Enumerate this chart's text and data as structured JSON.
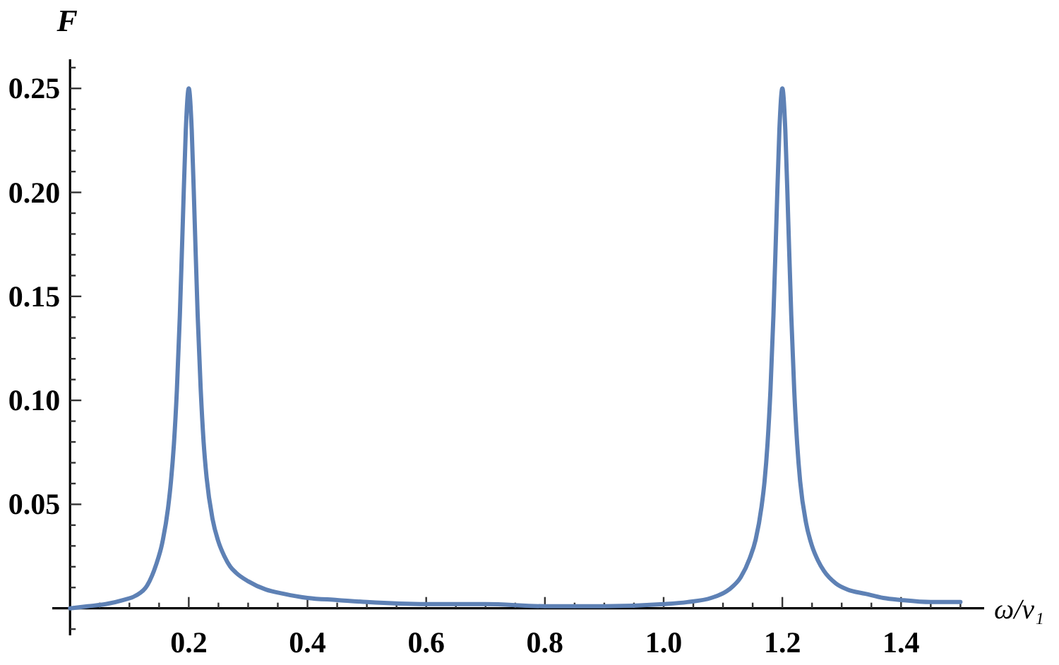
{
  "chart_data": {
    "type": "line",
    "xlabel": "ω/ν₁",
    "ylabel": "F",
    "color": "#5e81b5",
    "x": [
      0,
      0.03,
      0.06,
      0.09,
      0.11,
      0.13,
      0.145,
      0.155,
      0.165,
      0.17,
      0.175,
      0.18,
      0.185,
      0.19,
      0.195,
      0.2,
      0.205,
      0.21,
      0.215,
      0.22,
      0.225,
      0.23,
      0.24,
      0.25,
      0.26,
      0.27,
      0.28,
      0.3,
      0.33,
      0.36,
      0.4,
      0.45,
      0.5,
      0.6,
      0.7,
      0.8,
      0.9,
      1.0,
      1.04,
      1.08,
      1.11,
      1.13,
      1.145,
      1.155,
      1.165,
      1.17,
      1.175,
      1.18,
      1.185,
      1.19,
      1.195,
      1.2,
      1.205,
      1.21,
      1.215,
      1.22,
      1.225,
      1.23,
      1.24,
      1.25,
      1.26,
      1.27,
      1.29,
      1.31,
      1.34,
      1.37,
      1.4,
      1.45,
      1.5
    ],
    "values": [
      0,
      0.001,
      0.002,
      0.004,
      0.006,
      0.011,
      0.021,
      0.031,
      0.048,
      0.061,
      0.079,
      0.105,
      0.141,
      0.186,
      0.23,
      0.25,
      0.23,
      0.186,
      0.141,
      0.106,
      0.08,
      0.063,
      0.043,
      0.032,
      0.025,
      0.02,
      0.017,
      0.013,
      0.009,
      0.007,
      0.005,
      0.004,
      0.003,
      0.002,
      0.002,
      0.001,
      0.001,
      0.002,
      0.003,
      0.005,
      0.009,
      0.015,
      0.024,
      0.033,
      0.049,
      0.061,
      0.079,
      0.105,
      0.141,
      0.186,
      0.23,
      0.25,
      0.23,
      0.186,
      0.141,
      0.105,
      0.079,
      0.061,
      0.041,
      0.03,
      0.023,
      0.018,
      0.012,
      0.009,
      0.007,
      0.005,
      0.004,
      0.003,
      0.003
    ],
    "xlim": [
      -0.03,
      1.54
    ],
    "ylim": [
      -0.013,
      0.264
    ],
    "xticks": [
      {
        "value": 0.05,
        "label": null
      },
      {
        "value": 0.1,
        "label": null
      },
      {
        "value": 0.15,
        "label": null
      },
      0.2,
      {
        "value": 0.25,
        "label": null
      },
      {
        "value": 0.3,
        "label": null
      },
      {
        "value": 0.35,
        "label": null
      },
      0.4,
      {
        "value": 0.45,
        "label": null
      },
      {
        "value": 0.5,
        "label": null
      },
      {
        "value": 0.55,
        "label": null
      },
      0.6,
      {
        "value": 0.65,
        "label": null
      },
      {
        "value": 0.7,
        "label": null
      },
      {
        "value": 0.75,
        "label": null
      },
      0.8,
      {
        "value": 0.85,
        "label": null
      },
      {
        "value": 0.9,
        "label": null
      },
      {
        "value": 0.95,
        "label": null
      },
      {
        "value": 1,
        "label": "1.0"
      },
      {
        "value": 1.05,
        "label": null
      },
      {
        "value": 1.1,
        "label": null
      },
      {
        "value": 1.15,
        "label": null
      },
      1.2,
      {
        "value": 1.25,
        "label": null
      },
      {
        "value": 1.3,
        "label": null
      },
      {
        "value": 1.35,
        "label": null
      },
      1.4,
      {
        "value": 1.45,
        "label": null
      },
      {
        "value": 1.5,
        "label": null
      }
    ],
    "yticks": [
      {
        "value": -0.01,
        "label": null
      },
      {
        "value": 0.01,
        "label": null
      },
      {
        "value": 0.02,
        "label": null
      },
      {
        "value": 0.03,
        "label": null
      },
      {
        "value": 0.04,
        "label": null
      },
      0.05,
      {
        "value": 0.06,
        "label": null
      },
      {
        "value": 0.07,
        "label": null
      },
      {
        "value": 0.08,
        "label": null
      },
      {
        "value": 0.09,
        "label": null
      },
      {
        "value": 0.1,
        "label": "0.10"
      },
      {
        "value": 0.11,
        "label": null
      },
      {
        "value": 0.12,
        "label": null
      },
      {
        "value": 0.13,
        "label": null
      },
      {
        "value": 0.14,
        "label": null
      },
      {
        "value": 0.15,
        "label": "0.15"
      },
      {
        "value": 0.16,
        "label": null
      },
      {
        "value": 0.17,
        "label": null
      },
      {
        "value": 0.18,
        "label": null
      },
      {
        "value": 0.19,
        "label": null
      },
      {
        "value": 0.2,
        "label": "0.20"
      },
      {
        "value": 0.21,
        "label": null
      },
      {
        "value": 0.22,
        "label": null
      },
      {
        "value": 0.23,
        "label": null
      },
      {
        "value": 0.24,
        "label": null
      },
      0.25,
      {
        "value": 0.26,
        "label": null
      }
    ]
  }
}
